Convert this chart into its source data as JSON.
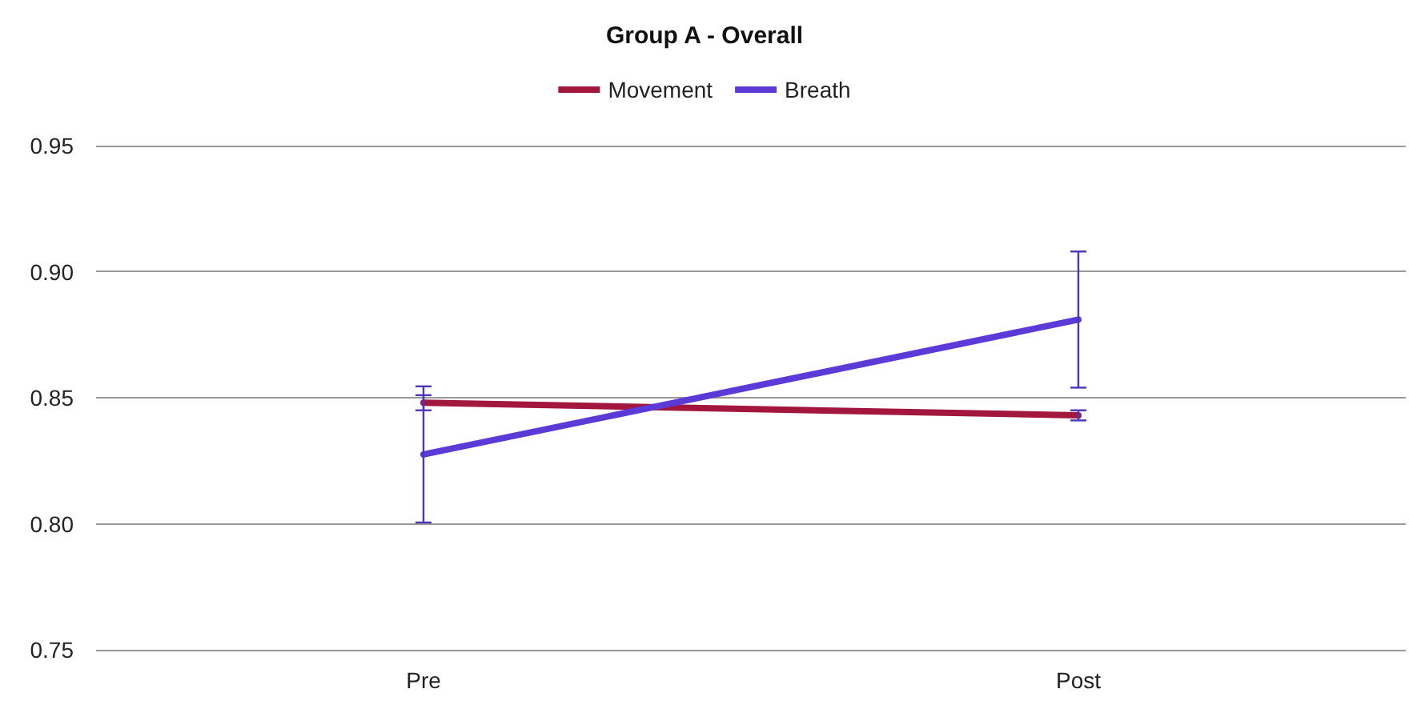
{
  "chart_data": {
    "type": "line",
    "title": "Group A - Overall",
    "categories": [
      "Pre",
      "Post"
    ],
    "series": [
      {
        "name": "Movement",
        "color": "#a3173f",
        "values": [
          0.848,
          0.843
        ],
        "errors": [
          0.003,
          0.002
        ]
      },
      {
        "name": "Breath",
        "color": "#5b3ad8",
        "values": [
          0.8275,
          0.881
        ],
        "errors": [
          0.027,
          0.027
        ]
      }
    ],
    "ylim": [
      0.75,
      0.95
    ],
    "yticks": [
      0.75,
      {
        "value": 0.8,
        "label": "0.80"
      },
      0.85,
      {
        "value": 0.9,
        "label": "0.90"
      },
      0.95
    ],
    "grid": "y",
    "legend": "top",
    "marker": "none",
    "line_style": "solid"
  }
}
